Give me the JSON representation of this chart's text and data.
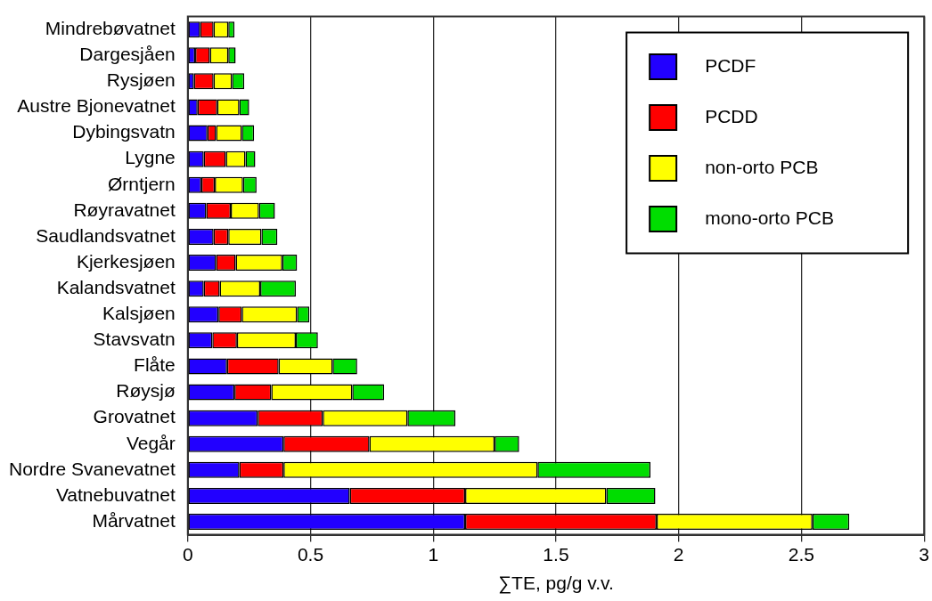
{
  "chart_data": {
    "type": "bar",
    "orientation": "horizontal",
    "stacked": true,
    "xlabel": "∑TE, pg/g v.v.",
    "categories": [
      "Mindrebøvatnet",
      "Dargesjåen",
      "Rysjøen",
      "Austre Bjonevatnet",
      "Dybingsvatn",
      "Lygne",
      "Ørntjern",
      "Røyravatnet",
      "Saudlandsvatnet",
      "Kjerkesjøen",
      "Kalandsvatnet",
      "Kalsjøen",
      "Stavsvatn",
      "Flåte",
      "Røysjø",
      "Grovatnet",
      "Vegår",
      "Nordre Svanevatnet",
      "Vatnebuvatnet",
      "Mårvatnet"
    ],
    "series": [
      {
        "name": "PCDF",
        "color": "#2200ff",
        "values": [
          0.05,
          0.03,
          0.025,
          0.04,
          0.08,
          0.065,
          0.055,
          0.075,
          0.105,
          0.115,
          0.065,
          0.125,
          0.1,
          0.16,
          0.19,
          0.285,
          0.39,
          0.21,
          0.66,
          1.13
        ]
      },
      {
        "name": "PCDD",
        "color": "#ff0000",
        "values": [
          0.055,
          0.06,
          0.08,
          0.08,
          0.035,
          0.09,
          0.055,
          0.1,
          0.06,
          0.08,
          0.065,
          0.095,
          0.1,
          0.21,
          0.15,
          0.265,
          0.35,
          0.18,
          0.47,
          0.78
        ]
      },
      {
        "name": "non-orto PCB",
        "color": "#ffff00",
        "values": [
          0.06,
          0.075,
          0.075,
          0.09,
          0.105,
          0.08,
          0.115,
          0.115,
          0.135,
          0.19,
          0.165,
          0.225,
          0.24,
          0.22,
          0.33,
          0.345,
          0.51,
          1.035,
          0.575,
          0.635
        ]
      },
      {
        "name": "mono-orto PCB",
        "color": "#00dd00",
        "values": [
          0.025,
          0.03,
          0.05,
          0.04,
          0.05,
          0.04,
          0.055,
          0.065,
          0.065,
          0.06,
          0.145,
          0.05,
          0.09,
          0.1,
          0.13,
          0.195,
          0.1,
          0.46,
          0.2,
          0.15
        ]
      }
    ],
    "xlim": [
      0,
      3
    ],
    "xticks": [
      0,
      0.5,
      1,
      1.5,
      2,
      2.5,
      3
    ],
    "grid": "x",
    "legend": "top right"
  }
}
